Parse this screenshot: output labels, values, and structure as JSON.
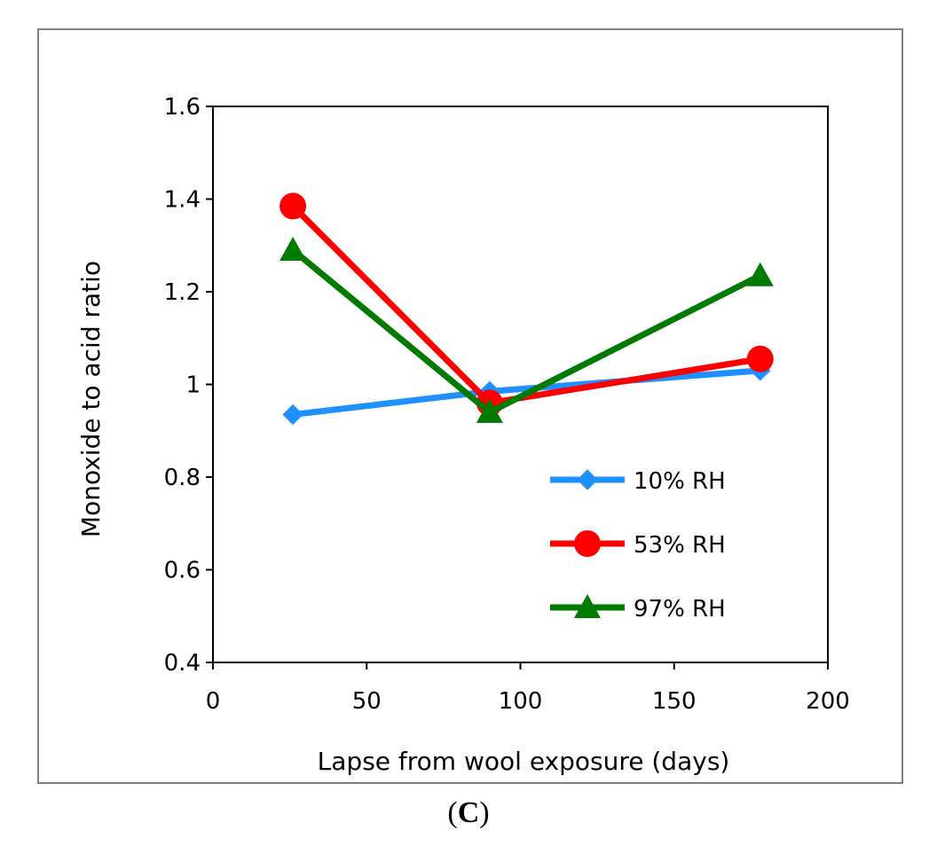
{
  "chart_data": {
    "type": "line",
    "title": "",
    "xlabel": "Lapse from wool exposure (days)",
    "ylabel": "Monoxide to acid ratio",
    "xlim": [
      0,
      200
    ],
    "ylim": [
      0.4,
      1.6
    ],
    "xticks": [
      0,
      50,
      100,
      150,
      200
    ],
    "xtick_labels": [
      "0",
      "50",
      "100",
      "150",
      "200"
    ],
    "yticks": [
      0.4,
      0.6,
      0.8,
      1.0,
      1.2,
      1.4,
      1.6
    ],
    "ytick_labels": [
      "0.4",
      "0.6",
      "0.8",
      "1",
      "1.2",
      "1.4",
      "1.6"
    ],
    "grid": false,
    "legend_position": "bottom-right",
    "x": [
      26,
      90,
      178
    ],
    "series": [
      {
        "name": "10% RH",
        "values": [
          0.935,
          0.985,
          1.03
        ],
        "color": "#1e90ff",
        "marker": "diamond"
      },
      {
        "name": "53% RH",
        "values": [
          1.385,
          0.96,
          1.055
        ],
        "color": "#ff0000",
        "marker": "circle"
      },
      {
        "name": "97% RH",
        "values": [
          1.29,
          0.94,
          1.235
        ],
        "color": "#007a00",
        "marker": "triangle"
      }
    ]
  },
  "caption": {
    "open": "(",
    "letter": "C",
    "close": ")"
  }
}
